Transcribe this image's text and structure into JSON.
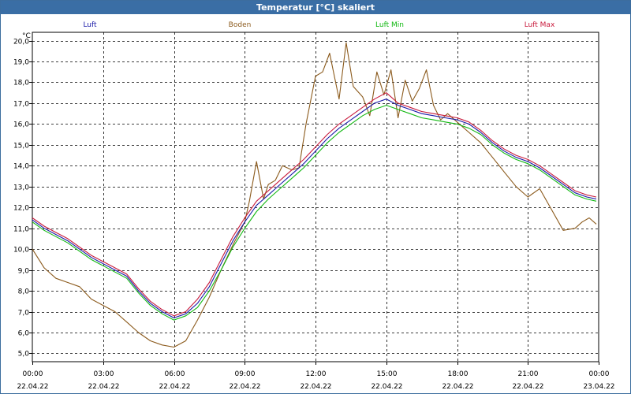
{
  "window": {
    "title": "Temperatur [°C] skaliert"
  },
  "chart_data": {
    "type": "line",
    "title": "Temperatur [°C] skaliert",
    "ylabel": "°C",
    "xlabel": "",
    "ylim": [
      4.6,
      20.4
    ],
    "xlim_hours": [
      0,
      24
    ],
    "grid": true,
    "y_ticks": [
      "5,0",
      "6,0",
      "7,0",
      "8,0",
      "9,0",
      "10,0",
      "11,0",
      "12,0",
      "13,0",
      "14,0",
      "15,0",
      "16,0",
      "17,0",
      "18,0",
      "19,0",
      "20,0"
    ],
    "x_ticks": [
      {
        "time": "00:00",
        "date": "22.04.22"
      },
      {
        "time": "03:00",
        "date": "22.04.22"
      },
      {
        "time": "06:00",
        "date": "22.04.22"
      },
      {
        "time": "09:00",
        "date": "22.04.22"
      },
      {
        "time": "12:00",
        "date": "22.04.22"
      },
      {
        "time": "15:00",
        "date": "22.04.22"
      },
      {
        "time": "18:00",
        "date": "22.04.22"
      },
      {
        "time": "21:00",
        "date": "22.04.22"
      },
      {
        "time": "00:00",
        "date": "23.04.22"
      }
    ],
    "series": [
      {
        "name": "Luft",
        "color": "#1a1aa8",
        "x": [
          0,
          0.5,
          1,
          1.5,
          2,
          2.5,
          3,
          3.5,
          4,
          4.5,
          5,
          5.5,
          6,
          6.5,
          7,
          7.5,
          8,
          8.5,
          9,
          9.5,
          10,
          10.5,
          11,
          11.5,
          12,
          12.5,
          13,
          13.5,
          14,
          14.5,
          15,
          15.5,
          16,
          16.5,
          17,
          17.5,
          18,
          18.5,
          19,
          19.5,
          20,
          20.5,
          21,
          21.5,
          22,
          22.5,
          23,
          23.5,
          23.9
        ],
        "values": [
          11.4,
          11.0,
          10.7,
          10.4,
          10.0,
          9.6,
          9.3,
          9.0,
          8.7,
          8.0,
          7.4,
          7.0,
          6.7,
          6.9,
          7.4,
          8.2,
          9.3,
          10.4,
          11.3,
          12.1,
          12.6,
          13.1,
          13.6,
          14.1,
          14.7,
          15.3,
          15.8,
          16.2,
          16.6,
          17.0,
          17.2,
          16.9,
          16.7,
          16.5,
          16.4,
          16.3,
          16.2,
          16.0,
          15.6,
          15.1,
          14.7,
          14.4,
          14.2,
          13.9,
          13.5,
          13.1,
          12.7,
          12.5,
          12.4
        ]
      },
      {
        "name": "Boden",
        "color": "#8b5a1c",
        "x": [
          0,
          0.5,
          1,
          1.5,
          2,
          2.5,
          3,
          3.5,
          4,
          4.5,
          5,
          5.5,
          6,
          6.5,
          7,
          7.5,
          8,
          8.5,
          9,
          9.2,
          9.5,
          9.8,
          10,
          10.3,
          10.6,
          11,
          11.3,
          11.6,
          12,
          12.3,
          12.6,
          13,
          13.3,
          13.6,
          14,
          14.3,
          14.6,
          14.9,
          15.2,
          15.5,
          15.8,
          16.1,
          16.4,
          16.7,
          17,
          17.3,
          17.6,
          18,
          18.5,
          19,
          19.5,
          20,
          20.5,
          21,
          21.5,
          22,
          22.5,
          23,
          23.3,
          23.6,
          23.9
        ],
        "values": [
          10.0,
          9.1,
          8.6,
          8.4,
          8.2,
          7.6,
          7.3,
          7.0,
          6.5,
          6.0,
          5.6,
          5.4,
          5.3,
          5.6,
          6.6,
          7.7,
          9.0,
          10.2,
          11.3,
          12.3,
          14.2,
          12.4,
          13.1,
          13.3,
          14.0,
          13.8,
          13.9,
          16.0,
          18.3,
          18.5,
          19.4,
          17.2,
          19.9,
          17.8,
          17.3,
          16.4,
          18.5,
          17.4,
          18.6,
          16.3,
          18.1,
          17.1,
          17.7,
          18.6,
          16.9,
          16.2,
          16.5,
          16.1,
          15.6,
          15.1,
          14.4,
          13.7,
          13.0,
          12.5,
          12.9,
          11.9,
          10.9,
          11.0,
          11.3,
          11.5,
          11.2
        ]
      },
      {
        "name": "Luft Min",
        "color": "#12b812",
        "x": [
          0,
          0.5,
          1,
          1.5,
          2,
          2.5,
          3,
          3.5,
          4,
          4.5,
          5,
          5.5,
          6,
          6.5,
          7,
          7.5,
          8,
          8.5,
          9,
          9.5,
          10,
          10.5,
          11,
          11.5,
          12,
          12.5,
          13,
          13.5,
          14,
          14.5,
          15,
          15.5,
          16,
          16.5,
          17,
          17.5,
          18,
          18.5,
          19,
          19.5,
          20,
          20.5,
          21,
          21.5,
          22,
          22.5,
          23,
          23.5,
          23.9
        ],
        "values": [
          11.3,
          10.9,
          10.6,
          10.3,
          9.9,
          9.5,
          9.2,
          8.9,
          8.6,
          7.9,
          7.3,
          6.9,
          6.6,
          6.8,
          7.2,
          8.0,
          9.0,
          10.1,
          11.0,
          11.8,
          12.4,
          12.9,
          13.4,
          13.9,
          14.5,
          15.1,
          15.6,
          16.0,
          16.4,
          16.7,
          16.9,
          16.7,
          16.5,
          16.3,
          16.2,
          16.1,
          16.0,
          15.8,
          15.5,
          15.0,
          14.6,
          14.3,
          14.1,
          13.8,
          13.4,
          13.0,
          12.6,
          12.4,
          12.3
        ]
      },
      {
        "name": "Luft Max",
        "color": "#c81a3c",
        "x": [
          0,
          0.5,
          1,
          1.5,
          2,
          2.5,
          3,
          3.5,
          4,
          4.5,
          5,
          5.5,
          6,
          6.5,
          7,
          7.5,
          8,
          8.5,
          9,
          9.5,
          10,
          10.5,
          11,
          11.5,
          12,
          12.5,
          13,
          13.5,
          14,
          14.5,
          15,
          15.5,
          16,
          16.5,
          17,
          17.5,
          18,
          18.5,
          19,
          19.5,
          20,
          20.5,
          21,
          21.5,
          22,
          22.5,
          23,
          23.5,
          23.9
        ],
        "values": [
          11.5,
          11.1,
          10.8,
          10.5,
          10.1,
          9.7,
          9.4,
          9.1,
          8.8,
          8.1,
          7.5,
          7.1,
          6.8,
          7.0,
          7.6,
          8.4,
          9.5,
          10.6,
          11.5,
          12.3,
          12.8,
          13.3,
          13.8,
          14.3,
          14.9,
          15.5,
          16.0,
          16.4,
          16.8,
          17.2,
          17.5,
          17.0,
          16.8,
          16.6,
          16.5,
          16.4,
          16.3,
          16.1,
          15.7,
          15.2,
          14.8,
          14.5,
          14.3,
          14.0,
          13.6,
          13.2,
          12.8,
          12.6,
          12.5
        ]
      }
    ]
  }
}
